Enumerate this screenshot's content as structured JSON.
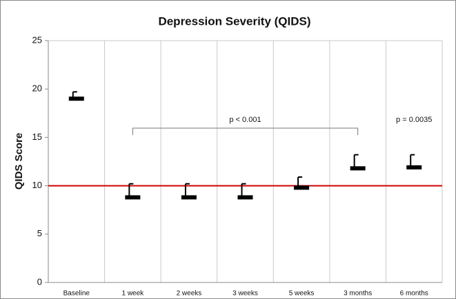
{
  "chart_data": {
    "type": "errorpoint",
    "title": "Depression Severity (QIDS)",
    "y_label": "QIDS Score",
    "categories": [
      "Baseline",
      "1 week",
      "2 weeks",
      "3 weeks",
      "5 weeks",
      "3 months",
      "6 months"
    ],
    "values": [
      19.0,
      8.8,
      8.8,
      8.8,
      9.8,
      11.8,
      11.9
    ],
    "errors": [
      0.7,
      1.4,
      1.4,
      1.4,
      1.1,
      1.4,
      1.3
    ],
    "color": "#000000",
    "ylim": [
      0,
      25
    ],
    "yticks": [
      0,
      5,
      10,
      15,
      20,
      25
    ],
    "reference_line": {
      "value": 10,
      "color": "#d00000"
    },
    "annotations": [
      {
        "text": "p < 0.001",
        "categories": [
          "1 week",
          "3 months"
        ]
      },
      {
        "text": "p = 0.0035",
        "categories": [
          "6 months"
        ]
      }
    ]
  }
}
